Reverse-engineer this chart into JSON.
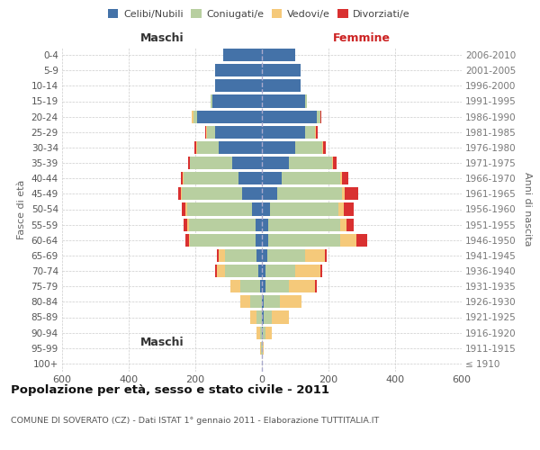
{
  "age_groups": [
    "100+",
    "95-99",
    "90-94",
    "85-89",
    "80-84",
    "75-79",
    "70-74",
    "65-69",
    "60-64",
    "55-59",
    "50-54",
    "45-49",
    "40-44",
    "35-39",
    "30-34",
    "25-29",
    "20-24",
    "15-19",
    "10-14",
    "5-9",
    "0-4"
  ],
  "birth_years": [
    "≤ 1910",
    "1911-1915",
    "1916-1920",
    "1921-1925",
    "1926-1930",
    "1931-1935",
    "1936-1940",
    "1941-1945",
    "1946-1950",
    "1951-1955",
    "1956-1960",
    "1961-1965",
    "1966-1970",
    "1971-1975",
    "1976-1980",
    "1981-1985",
    "1986-1990",
    "1991-1995",
    "1996-2000",
    "2001-2005",
    "2006-2010"
  ],
  "males": {
    "celibi": [
      0,
      0,
      0,
      0,
      0,
      5,
      10,
      15,
      20,
      20,
      30,
      60,
      70,
      90,
      130,
      140,
      195,
      150,
      140,
      140,
      115
    ],
    "coniugati": [
      0,
      2,
      5,
      15,
      35,
      60,
      100,
      95,
      195,
      200,
      195,
      180,
      165,
      125,
      65,
      25,
      10,
      5,
      0,
      0,
      0
    ],
    "vedovi": [
      0,
      3,
      10,
      20,
      30,
      30,
      25,
      20,
      5,
      5,
      5,
      3,
      2,
      2,
      2,
      2,
      5,
      0,
      0,
      0,
      0
    ],
    "divorziati": [
      0,
      0,
      0,
      0,
      0,
      0,
      5,
      5,
      10,
      10,
      10,
      8,
      5,
      5,
      5,
      3,
      2,
      0,
      0,
      0,
      0
    ]
  },
  "females": {
    "nubili": [
      0,
      0,
      2,
      5,
      5,
      10,
      10,
      15,
      20,
      20,
      25,
      45,
      60,
      80,
      100,
      130,
      165,
      130,
      115,
      115,
      100
    ],
    "coniugate": [
      0,
      3,
      8,
      25,
      50,
      70,
      90,
      115,
      215,
      215,
      205,
      195,
      175,
      130,
      80,
      30,
      10,
      5,
      0,
      0,
      0
    ],
    "vedove": [
      0,
      3,
      20,
      50,
      65,
      80,
      75,
      60,
      50,
      20,
      15,
      8,
      5,
      3,
      3,
      2,
      2,
      0,
      0,
      0,
      0
    ],
    "divorziate": [
      0,
      0,
      0,
      0,
      0,
      5,
      5,
      5,
      30,
      20,
      30,
      40,
      20,
      10,
      8,
      5,
      2,
      0,
      0,
      0,
      0
    ]
  },
  "colors": {
    "celibi": "#4472a8",
    "coniugati": "#b8cfa0",
    "vedovi": "#f5c97a",
    "divorziati": "#d93030"
  },
  "xlim": 600,
  "title": "Popolazione per età, sesso e stato civile - 2011",
  "subtitle": "COMUNE DI SOVERATO (CZ) - Dati ISTAT 1° gennaio 2011 - Elaborazione TUTTITALIA.IT",
  "ylabel_left": "Fasce di età",
  "ylabel_right": "Anni di nascita",
  "xlabel_left": "Maschi",
  "xlabel_right": "Femmine",
  "legend_labels": [
    "Celibi/Nubili",
    "Coniugati/e",
    "Vedovi/e",
    "Divorziati/e"
  ],
  "background_color": "#ffffff",
  "grid_color": "#cccccc"
}
